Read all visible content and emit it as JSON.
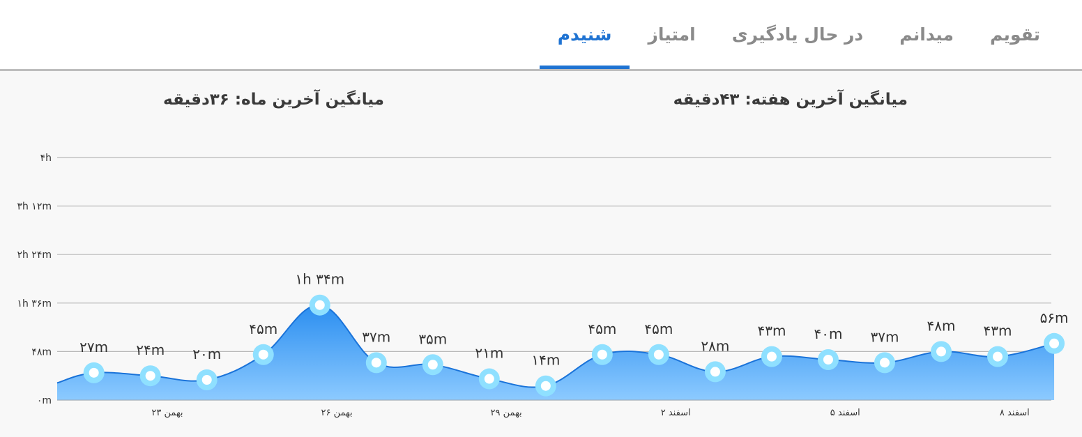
{
  "tabs": [
    {
      "label": "تقویم",
      "active": false
    },
    {
      "label": "میدانم",
      "active": false
    },
    {
      "label": "در حال یادگیری",
      "active": false
    },
    {
      "label": "امتیاز",
      "active": false
    },
    {
      "label": "شنیدم",
      "active": true
    }
  ],
  "summary": {
    "week_label": "میانگین آخرین هفته:",
    "week_value": "۴۳دقیقه",
    "month_label": "میانگین آخرین ماه:",
    "month_value": "۳۶دقیقه"
  },
  "colors": {
    "accent": "#1f73d2",
    "area_top": "#2b8ef0",
    "area_bottom": "#8ccaff",
    "line": "#1a73d9",
    "marker_ring": "#8fe0ff",
    "grid": "#b8b8b8"
  },
  "chart_data": {
    "type": "area",
    "unit": "minutes",
    "ylim": [
      0,
      240
    ],
    "yticks": [
      {
        "value": 0,
        "label": "۰m"
      },
      {
        "value": 48,
        "label": "۴۸m"
      },
      {
        "value": 96,
        "label": "۱h ۳۶m"
      },
      {
        "value": 144,
        "label": "۲h ۲۴m"
      },
      {
        "value": 192,
        "label": "۳h ۱۲m"
      },
      {
        "value": 240,
        "label": "۴h"
      }
    ],
    "x_index_range": [
      -0.65,
      16.95
    ],
    "xticks": [
      {
        "index": 1.3,
        "label": "۲۳ بهمن"
      },
      {
        "index": 4.3,
        "label": "۲۶ بهمن"
      },
      {
        "index": 7.3,
        "label": "۲۹ بهمن"
      },
      {
        "index": 10.3,
        "label": "۲ اسفند"
      },
      {
        "index": 13.3,
        "label": "۵ اسفند"
      },
      {
        "index": 16.3,
        "label": "۸ اسفند"
      }
    ],
    "start_value": 17,
    "grid": true,
    "points": [
      {
        "value": 27,
        "label": "۲۷m"
      },
      {
        "value": 24,
        "label": "۲۴m"
      },
      {
        "value": 20,
        "label": "۲۰m"
      },
      {
        "value": 45,
        "label": "۴۵m"
      },
      {
        "value": 94,
        "label": "۱h ۳۴m"
      },
      {
        "value": 37,
        "label": "۳۷m"
      },
      {
        "value": 35,
        "label": "۳۵m"
      },
      {
        "value": 21,
        "label": "۲۱m"
      },
      {
        "value": 14,
        "label": "۱۴m"
      },
      {
        "value": 45,
        "label": "۴۵m"
      },
      {
        "value": 45,
        "label": "۴۵m"
      },
      {
        "value": 28,
        "label": "۲۸m"
      },
      {
        "value": 43,
        "label": "۴۳m"
      },
      {
        "value": 40,
        "label": "۴۰m"
      },
      {
        "value": 37,
        "label": "۳۷m"
      },
      {
        "value": 48,
        "label": "۴۸m"
      },
      {
        "value": 43,
        "label": "۴۳m"
      },
      {
        "value": 56,
        "label": "۵۶m"
      }
    ]
  }
}
